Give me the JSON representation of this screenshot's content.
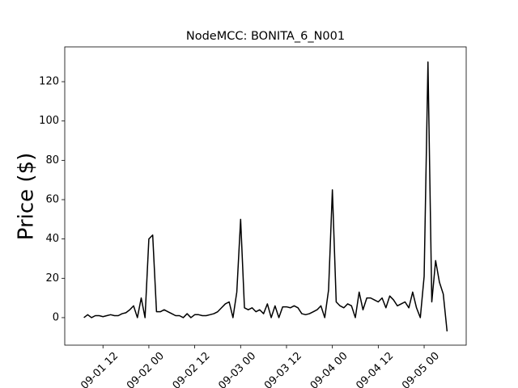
{
  "chart_data": {
    "type": "line",
    "title": "NodeMCC: BONITA_6_N001",
    "y_label": "Price ($)",
    "x": [
      "09-01 07",
      "09-01 08",
      "09-01 09",
      "09-01 10",
      "09-01 11",
      "09-01 12",
      "09-01 13",
      "09-01 14",
      "09-01 15",
      "09-01 16",
      "09-01 17",
      "09-01 18",
      "09-01 19",
      "09-01 20",
      "09-01 21",
      "09-01 22",
      "09-01 23",
      "09-02 00",
      "09-02 01",
      "09-02 02",
      "09-02 03",
      "09-02 04",
      "09-02 05",
      "09-02 06",
      "09-02 07",
      "09-02 08",
      "09-02 09",
      "09-02 10",
      "09-02 11",
      "09-02 12",
      "09-02 13",
      "09-02 14",
      "09-02 15",
      "09-02 16",
      "09-02 17",
      "09-02 18",
      "09-02 19",
      "09-02 20",
      "09-02 21",
      "09-02 22",
      "09-02 23",
      "09-03 00",
      "09-03 01",
      "09-03 02",
      "09-03 03",
      "09-03 04",
      "09-03 05",
      "09-03 06",
      "09-03 07",
      "09-03 08",
      "09-03 09",
      "09-03 10",
      "09-03 11",
      "09-03 12",
      "09-03 13",
      "09-03 14",
      "09-03 15",
      "09-03 16",
      "09-03 17",
      "09-03 18",
      "09-03 19",
      "09-03 20",
      "09-03 21",
      "09-03 22",
      "09-03 23",
      "09-04 00",
      "09-04 01",
      "09-04 02",
      "09-04 03",
      "09-04 04",
      "09-04 05",
      "09-04 06",
      "09-04 07",
      "09-04 08",
      "09-04 09",
      "09-04 10",
      "09-04 11",
      "09-04 12",
      "09-04 13",
      "09-04 14",
      "09-04 15",
      "09-04 16",
      "09-04 17",
      "09-04 18",
      "09-04 19",
      "09-04 20",
      "09-04 21",
      "09-04 22",
      "09-04 23",
      "09-05 00",
      "09-05 01",
      "09-05 02",
      "09-05 03",
      "09-05 04",
      "09-05 05",
      "09-05 06"
    ],
    "series": [
      {
        "name": "Price",
        "color": "#000000",
        "values": [
          0,
          1.5,
          0,
          1,
          1,
          0.5,
          1,
          1.5,
          1,
          1,
          2,
          2.5,
          4,
          6,
          0,
          10,
          0,
          40,
          42,
          3,
          3,
          4,
          3,
          2,
          1,
          1,
          0,
          2,
          0,
          1.5,
          1.5,
          1,
          1,
          1.5,
          2,
          3,
          5,
          7,
          8,
          0,
          13,
          50,
          5,
          4,
          5,
          3,
          4,
          2,
          7,
          0,
          6,
          0,
          5.5,
          5.5,
          5,
          6,
          5,
          2,
          1.5,
          2,
          3,
          4,
          6,
          0,
          14,
          65,
          8,
          6,
          5,
          7,
          6,
          0,
          13,
          4,
          10,
          10,
          9,
          8,
          10,
          5,
          11,
          9,
          6,
          7,
          8,
          5,
          13,
          5,
          0,
          21,
          130,
          8,
          29,
          18,
          12,
          -7
        ]
      }
    ],
    "xlim": [
      "09-01 02",
      "09-05 11"
    ],
    "ylim": [
      -14,
      137.7
    ],
    "xticks": [
      "09-01 12",
      "09-02 00",
      "09-02 12",
      "09-03 00",
      "09-03 12",
      "09-04 00",
      "09-04 12",
      "09-05 00"
    ],
    "yticks": [
      0,
      20,
      40,
      60,
      80,
      100,
      120
    ]
  }
}
